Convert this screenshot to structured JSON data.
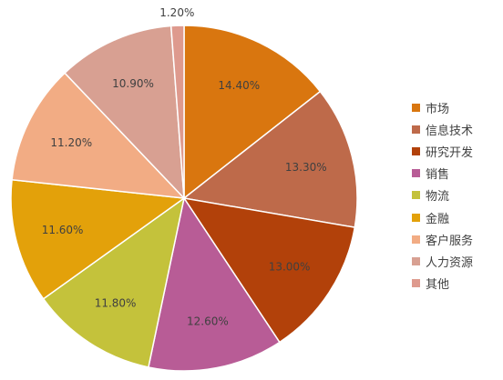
{
  "chart_data": {
    "type": "pie",
    "categories": [
      "市场",
      "信息技术",
      "研究开发",
      "销售",
      "物流",
      "金融",
      "客户服务",
      "人力资源",
      "其他"
    ],
    "values": [
      14.4,
      13.3,
      13.0,
      12.6,
      11.8,
      11.6,
      11.2,
      10.9,
      1.2
    ],
    "value_labels": [
      "14.40%",
      "13.30%",
      "13.00%",
      "12.60%",
      "11.80%",
      "11.60%",
      "11.20%",
      "10.90%",
      "1.20%"
    ],
    "colors": [
      "#D9760F",
      "#BE6A4A",
      "#B2410A",
      "#B85C96",
      "#C4C23B",
      "#E3A10A",
      "#F2AC84",
      "#D8A092",
      "#DE9A8E"
    ],
    "start_angle_deg": 0,
    "direction": "clockwise",
    "legend_position": "right"
  }
}
